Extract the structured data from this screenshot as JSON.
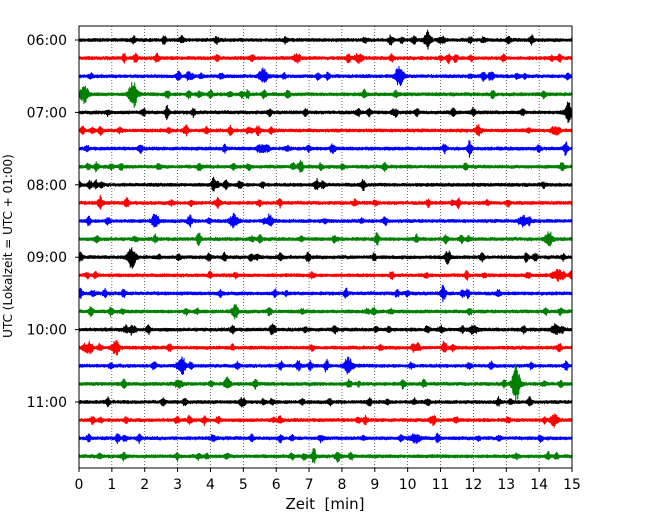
{
  "chart_data": {
    "type": "line",
    "title": "",
    "xlabel": "Zeit  [min]",
    "ylabel": "UTC (Lokalzeit = UTC + 01:00)",
    "xlim": [
      0,
      15
    ],
    "x_ticks": [
      "0",
      "1",
      "2",
      "3",
      "4",
      "5",
      "6",
      "7",
      "8",
      "9",
      "10",
      "11",
      "12",
      "13",
      "14",
      "15"
    ],
    "y_tick_labels": [
      "06:00",
      "07:00",
      "08:00",
      "09:00",
      "10:00",
      "11:00"
    ],
    "grid": "vertical dotted",
    "trace_colors": [
      "#000000",
      "#ff0000",
      "#0000ff",
      "#008000"
    ],
    "trace_interval_minutes": 15,
    "traces": [
      {
        "start": "06:00",
        "color": "#000000",
        "events": [
          [
            10.6,
            0.45
          ]
        ]
      },
      {
        "start": "06:15",
        "color": "#ff0000",
        "events": [
          [
            8.5,
            0.4
          ]
        ]
      },
      {
        "start": "06:30",
        "color": "#0000ff",
        "events": [
          [
            5.6,
            0.7
          ],
          [
            9.75,
            1.0
          ]
        ]
      },
      {
        "start": "06:45",
        "color": "#008000",
        "events": [
          [
            0.15,
            0.7
          ],
          [
            1.65,
            1.0
          ]
        ]
      },
      {
        "start": "07:00",
        "color": "#000000",
        "events": [
          [
            14.9,
            0.7
          ]
        ]
      },
      {
        "start": "07:15",
        "color": "#ff0000",
        "events": [
          [
            14.5,
            0.45
          ]
        ]
      },
      {
        "start": "07:30",
        "color": "#0000ff",
        "events": []
      },
      {
        "start": "07:45",
        "color": "#008000",
        "events": []
      },
      {
        "start": "08:00",
        "color": "#000000",
        "events": []
      },
      {
        "start": "08:15",
        "color": "#ff0000",
        "events": []
      },
      {
        "start": "08:30",
        "color": "#0000ff",
        "events": [
          [
            4.7,
            0.6
          ],
          [
            13.5,
            0.5
          ]
        ]
      },
      {
        "start": "08:45",
        "color": "#008000",
        "events": [
          [
            14.3,
            0.5
          ]
        ]
      },
      {
        "start": "09:00",
        "color": "#000000",
        "events": [
          [
            1.6,
            1.0
          ]
        ]
      },
      {
        "start": "09:15",
        "color": "#ff0000",
        "events": []
      },
      {
        "start": "09:30",
        "color": "#0000ff",
        "events": []
      },
      {
        "start": "09:45",
        "color": "#008000",
        "events": []
      },
      {
        "start": "10:00",
        "color": "#000000",
        "events": [
          [
            12.0,
            0.45
          ],
          [
            14.5,
            0.45
          ]
        ]
      },
      {
        "start": "10:15",
        "color": "#ff0000",
        "events": [
          [
            1.1,
            0.5
          ]
        ]
      },
      {
        "start": "10:30",
        "color": "#0000ff",
        "events": [
          [
            3.1,
            0.7
          ],
          [
            8.2,
            0.8
          ]
        ]
      },
      {
        "start": "10:45",
        "color": "#008000",
        "events": [
          [
            13.3,
            1.4
          ]
        ]
      },
      {
        "start": "11:00",
        "color": "#000000",
        "events": []
      },
      {
        "start": "11:15",
        "color": "#ff0000",
        "events": [
          [
            14.45,
            0.55
          ]
        ]
      },
      {
        "start": "11:30",
        "color": "#0000ff",
        "events": [
          [
            10.2,
            0.4
          ]
        ]
      },
      {
        "start": "11:45",
        "color": "#008000",
        "events": []
      }
    ]
  }
}
